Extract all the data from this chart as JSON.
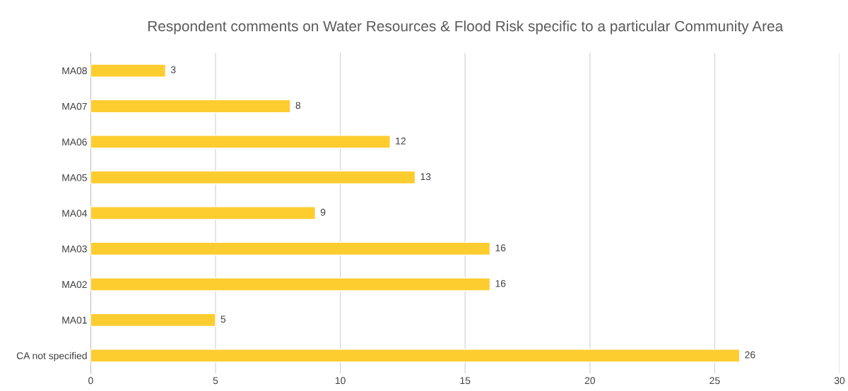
{
  "chart_data": {
    "type": "bar",
    "orientation": "horizontal",
    "title": "Respondent comments on Water Resources & Flood Risk specific to a particular Community Area",
    "categories": [
      "MA08",
      "MA07",
      "MA06",
      "MA05",
      "MA04",
      "MA03",
      "MA02",
      "MA01",
      "CA not specified"
    ],
    "values": [
      3,
      8,
      12,
      13,
      9,
      16,
      16,
      5,
      26
    ],
    "color": "#fdcd30",
    "xlim": [
      0,
      30
    ],
    "xticks": [
      0,
      5,
      10,
      15,
      20,
      25,
      30
    ],
    "grid": "x",
    "data_labels": true
  }
}
